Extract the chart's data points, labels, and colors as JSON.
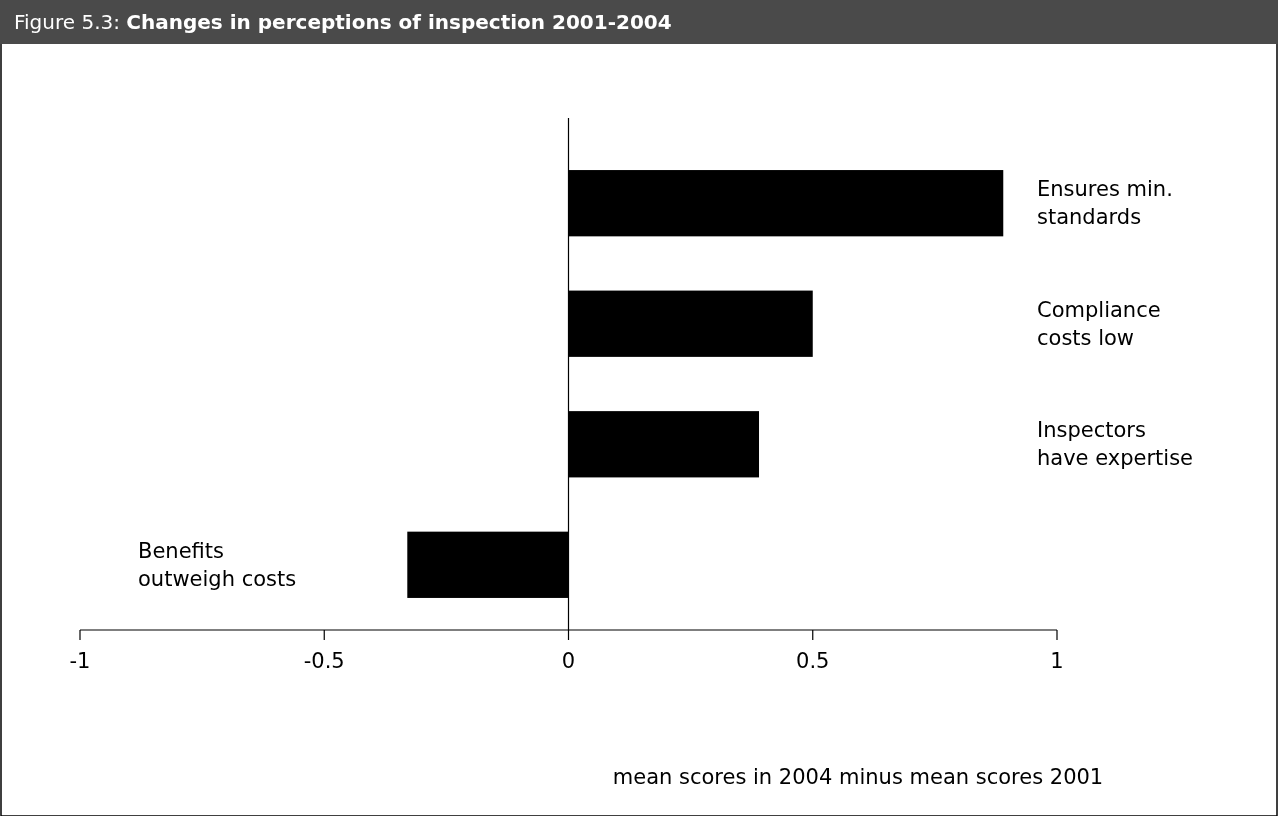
{
  "chart_data": {
    "type": "bar",
    "orientation": "horizontal",
    "title": "Figure 5.3: Changes in perceptions of inspection 2001-2004",
    "xlabel": "mean scores in 2004 minus mean scores 2001",
    "categories": [
      "Ensures min. standards",
      "Compliance costs low",
      "Inspectors have expertise",
      "Benefits outweigh costs"
    ],
    "values": [
      0.89,
      0.5,
      0.39,
      -0.33
    ],
    "color": "#000000",
    "xlim": [
      -1,
      1
    ],
    "xticks": [
      -1,
      -0.5,
      0,
      0.5,
      1
    ]
  }
}
